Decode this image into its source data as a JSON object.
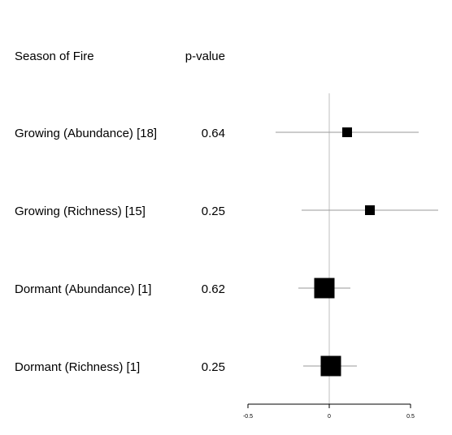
{
  "chart_data": {
    "type": "forest",
    "column_headers": {
      "label": "Season of Fire",
      "pvalue": "p-value"
    },
    "rows": [
      {
        "label": "Growing (Abundance) [18]",
        "pvalue": "0.64",
        "estimate": 0.11,
        "ci": [
          -0.33,
          0.55
        ],
        "weight": 0.35
      },
      {
        "label": "Growing (Richness) [15]",
        "pvalue": "0.25",
        "estimate": 0.25,
        "ci": [
          -0.17,
          0.67
        ],
        "weight": 0.35
      },
      {
        "label": "Dormant (Abundance) [1]",
        "pvalue": "0.62",
        "estimate": -0.03,
        "ci": [
          -0.19,
          0.13
        ],
        "weight": 1.0
      },
      {
        "label": "Dormant (Richness) [1]",
        "pvalue": "0.25",
        "estimate": 0.01,
        "ci": [
          -0.16,
          0.17
        ],
        "weight": 1.0
      }
    ],
    "x_axis": {
      "lim": [
        -0.5,
        0.5
      ],
      "ticks": [
        -0.5,
        0,
        0.5
      ],
      "tick_labels": [
        "-0.5",
        "0",
        "0.5"
      ]
    },
    "reference_line": 0,
    "colors": {
      "marker": "#000000",
      "ci_line": "#999999",
      "reference_line": "#bfbfbf",
      "axis": "#000000"
    }
  }
}
